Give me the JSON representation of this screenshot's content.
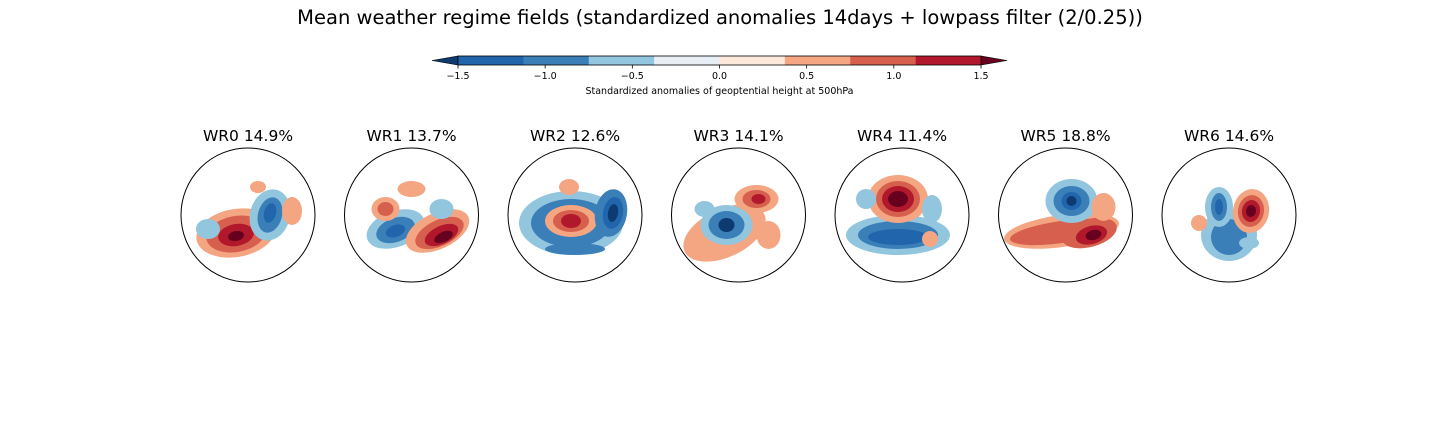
{
  "chart_data": {
    "type": "heatmap",
    "title": "Mean weather regime fields (standardized anomalies 14days + lowpass filter (2/0.25))",
    "colorbar": {
      "label": "Standardized anomalies of geoptential height at 500hPa",
      "ticks": [
        "−1.5",
        "−1.0",
        "−0.5",
        "0.0",
        "0.5",
        "1.0",
        "1.5"
      ],
      "tick_values": [
        -1.5,
        -1.0,
        -0.5,
        0.0,
        0.5,
        1.0,
        1.5
      ],
      "colors": [
        "#2166ac",
        "#3a7fb8",
        "#92c5de",
        "#e7eef5",
        "#fde8dc",
        "#f4a582",
        "#d6604d",
        "#b2182b"
      ],
      "extend": "both",
      "under_color": "#0d3a70",
      "over_color": "#67001f"
    },
    "panels": [
      {
        "title": "WR0 14.9%"
      },
      {
        "title": "WR1 13.7%"
      },
      {
        "title": "WR2 12.6%"
      },
      {
        "title": "WR3 14.1%"
      },
      {
        "title": "WR4 11.4%"
      },
      {
        "title": "WR5 18.8%"
      },
      {
        "title": "WR6 14.6%"
      }
    ]
  }
}
